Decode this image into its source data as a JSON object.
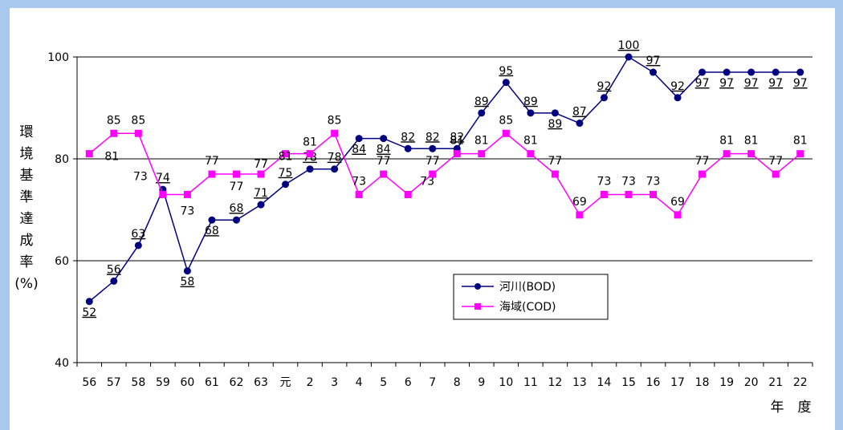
{
  "chart_data": {
    "type": "line",
    "categories": [
      "56",
      "57",
      "58",
      "59",
      "60",
      "61",
      "62",
      "63",
      "元",
      "2",
      "3",
      "4",
      "5",
      "6",
      "7",
      "8",
      "9",
      "10",
      "11",
      "12",
      "13",
      "14",
      "15",
      "16",
      "17",
      "18",
      "19",
      "20",
      "21",
      "22"
    ],
    "ylim": [
      40,
      100
    ],
    "yticks": [
      40,
      60,
      80,
      100
    ],
    "gridlines": [
      60,
      80,
      100
    ],
    "ylabel_chars": [
      "環",
      "境",
      "基",
      "準",
      "達",
      "成",
      "率"
    ],
    "ylabel_unit": "(%)",
    "xlabel": "年　度",
    "legend_position": "center-right",
    "series": [
      {
        "name": "河川(BOD)",
        "color": "#000080",
        "marker": "circle",
        "labels_underlined": true,
        "values": [
          52,
          56,
          63,
          74,
          58,
          68,
          68,
          71,
          75,
          78,
          78,
          84,
          84,
          82,
          82,
          82,
          89,
          95,
          89,
          89,
          87,
          92,
          100,
          97,
          92,
          97,
          97,
          97,
          97,
          97
        ],
        "label_dy": [
          18,
          -10,
          -10,
          -10,
          18,
          18,
          -10,
          -10,
          -10,
          -10,
          -10,
          18,
          18,
          -10,
          -10,
          -10,
          -10,
          -10,
          -10,
          18,
          -10,
          -10,
          -10,
          -10,
          -10,
          18,
          18,
          18,
          18,
          18
        ]
      },
      {
        "name": "海域(COD)",
        "color": "#ff00ff",
        "marker": "square",
        "labels_underlined": false,
        "values": [
          81,
          85,
          85,
          73,
          73,
          77,
          77,
          77,
          81,
          81,
          85,
          73,
          77,
          73,
          77,
          81,
          81,
          85,
          81,
          77,
          69,
          73,
          73,
          73,
          69,
          77,
          81,
          81,
          77,
          81
        ],
        "label_dy": [
          8,
          -12,
          -12,
          -18,
          25,
          -12,
          20,
          -8,
          8,
          -10,
          -12,
          -12,
          -12,
          -12,
          -12,
          -12,
          -12,
          -12,
          -12,
          -12,
          -12,
          -12,
          -12,
          -12,
          -12,
          -12,
          -12,
          -12,
          -12,
          -12
        ],
        "label_dx": [
          28,
          0,
          0,
          -28,
          0,
          0,
          0,
          0,
          0,
          0,
          0,
          0,
          0,
          24,
          0,
          0,
          0,
          0,
          0,
          0,
          0,
          0,
          0,
          0,
          0,
          0,
          0,
          0,
          0,
          0
        ]
      }
    ]
  }
}
